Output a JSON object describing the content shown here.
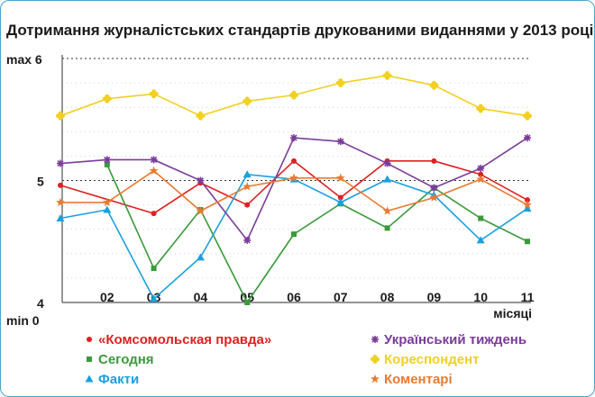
{
  "chart_data": {
    "type": "line",
    "title": "Дотримання журналістських стандартів друкованими виданнями у 2013 році",
    "xlabel": "місяці",
    "ylabel": "",
    "x_ticks": [
      "02",
      "03",
      "04",
      "05",
      "06",
      "07",
      "08",
      "09",
      "10",
      "11"
    ],
    "y_ticks": [
      {
        "value": 6,
        "label": "max 6"
      },
      {
        "value": 5,
        "label": "5"
      },
      {
        "value": 4,
        "label": "4"
      }
    ],
    "y_min_label": "min 0",
    "ylim": [
      4,
      6
    ],
    "grid": true,
    "legend_position": "bottom",
    "x": [
      1,
      2,
      3,
      4,
      5,
      6,
      7,
      8,
      9,
      10,
      11
    ],
    "series": [
      {
        "name": "«Комсомольская правда»",
        "color": "#e02020",
        "marker": "circle",
        "values": [
          4.96,
          null,
          4.73,
          4.98,
          4.8,
          5.16,
          4.86,
          5.16,
          5.16,
          5.05,
          4.84
        ]
      },
      {
        "name": "Сегодня",
        "color": "#3a9a3a",
        "marker": "square",
        "values": [
          null,
          5.13,
          4.28,
          4.76,
          4.0,
          4.56,
          4.81,
          4.61,
          4.94,
          4.69,
          4.5
        ]
      },
      {
        "name": "Факти",
        "color": "#1aa0e0",
        "marker": "triangle",
        "values": [
          4.69,
          4.76,
          4.03,
          4.37,
          5.05,
          5.01,
          4.82,
          5.01,
          4.88,
          4.51,
          4.77
        ]
      },
      {
        "name": "Український тиждень",
        "color": "#7a3c9a",
        "marker": "asterisk",
        "values": [
          5.14,
          5.17,
          5.17,
          5.0,
          4.51,
          5.35,
          5.32,
          5.14,
          4.94,
          5.1,
          5.35
        ]
      },
      {
        "name": "Кореспондент",
        "color": "#f2d020",
        "marker": "flower",
        "values": [
          5.53,
          5.67,
          5.71,
          5.53,
          5.65,
          5.7,
          5.8,
          5.86,
          5.78,
          5.59,
          5.53
        ]
      },
      {
        "name": "Коментарі",
        "color": "#e87a30",
        "marker": "star",
        "values": [
          4.82,
          4.82,
          5.08,
          4.75,
          4.95,
          5.02,
          5.02,
          4.75,
          4.86,
          5.01,
          4.8
        ]
      }
    ]
  }
}
